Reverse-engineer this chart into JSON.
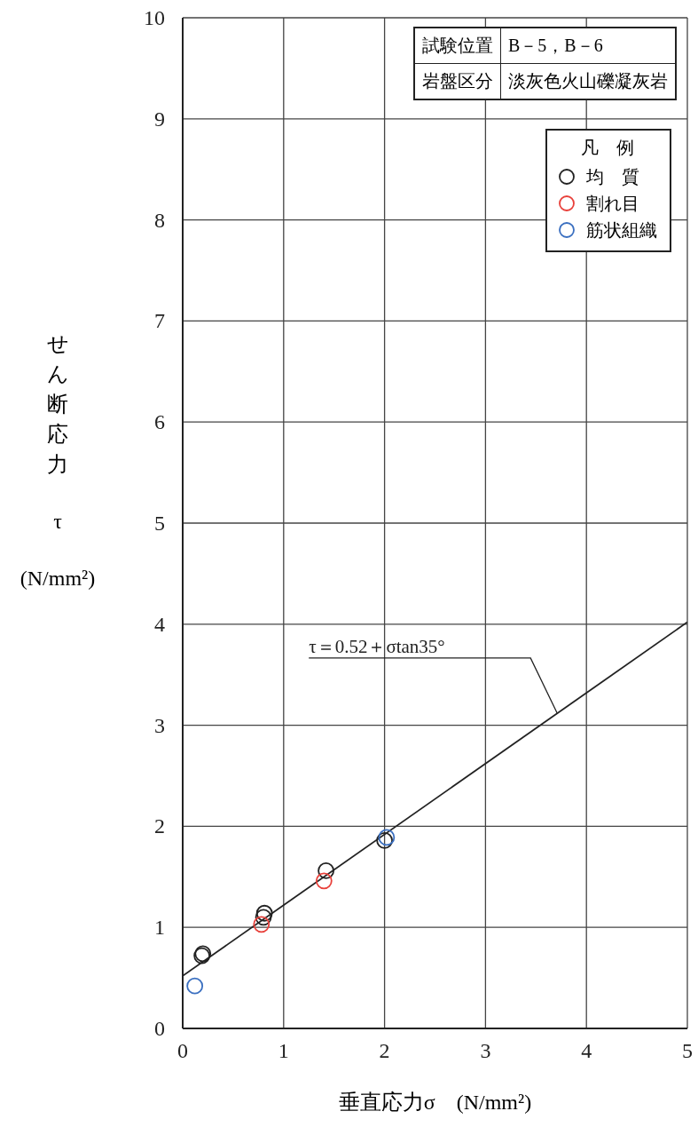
{
  "chart_data": {
    "type": "scatter",
    "xlabel": "垂直応力σ　(N/mm²)",
    "ylabel": "せん断応力τ(N/mm²)",
    "legend_title": "凡　例",
    "legend": "top right",
    "grid": true,
    "marker": "circle",
    "xlim": [
      0,
      5
    ],
    "xticks": [
      0,
      1,
      2,
      3,
      4,
      5
    ],
    "ylim": [
      0,
      10
    ],
    "yticks": [
      0,
      1,
      2,
      3,
      4,
      5,
      6,
      7,
      8,
      9,
      10
    ],
    "series": [
      {
        "name": "均　質",
        "color": "#222222",
        "x": [
          0.19,
          0.2,
          0.8,
          0.81,
          1.42,
          2.0
        ],
        "values": [
          0.72,
          0.74,
          1.1,
          1.14,
          1.56,
          1.86
        ]
      },
      {
        "name": "割れ目",
        "color": "#e8403a",
        "x": [
          0.78,
          1.4
        ],
        "values": [
          1.03,
          1.46
        ]
      },
      {
        "name": "筋状組織",
        "color": "#3a6fc0",
        "x": [
          0.12,
          2.02
        ],
        "values": [
          0.42,
          1.89
        ]
      },
      {
        "type": "line",
        "marker": "none",
        "color": "#222222",
        "x": [
          0,
          5
        ],
        "values": [
          0.52,
          4.02
        ]
      }
    ],
    "annotations": [
      {
        "text": "τ＝0.52＋σtan35°",
        "x": 3.71,
        "y": 3.12
      },
      "試験位置",
      "B－5，B－6",
      "岩盤区分",
      "淡灰色火山礫凝灰岩"
    ]
  }
}
